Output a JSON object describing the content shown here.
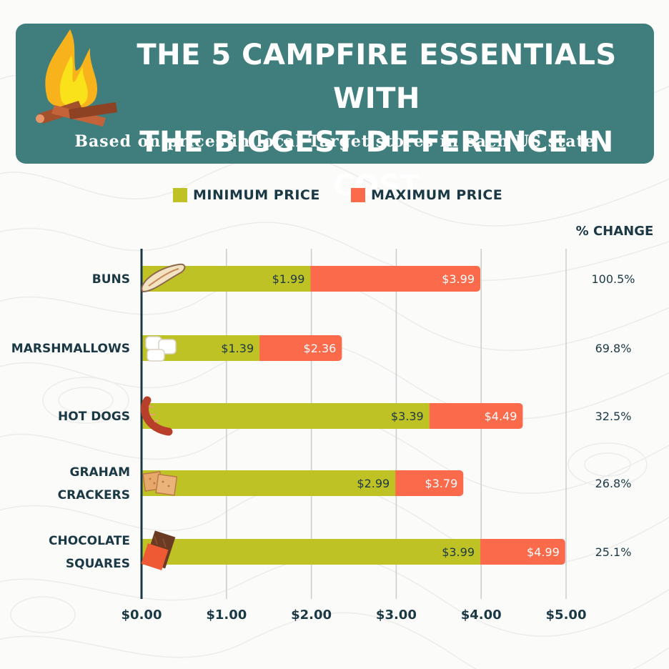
{
  "header": {
    "title_line1": "THE 5 CAMPFIRE ESSENTIALS WITH",
    "title_line2": "THE BIGGEST DIFFERENCE IN COST",
    "subtitle": "Based on prices in local Target stores in each US state"
  },
  "legend": {
    "min_label": "MINIMUM PRICE",
    "max_label": "MAXIMUM PRICE"
  },
  "pct_header": "% CHANGE",
  "colors": {
    "header_bg": "#3f7e7d",
    "min": "#bfc225",
    "max": "#fb6a4a",
    "text_dark": "#1b3845"
  },
  "icons": [
    "campfire-icon",
    "bun-icon",
    "marshmallow-icon",
    "hot-dog-icon",
    "graham-cracker-icon",
    "chocolate-icon"
  ],
  "chart_data": {
    "type": "bar",
    "orientation": "horizontal",
    "stacked_ranges": true,
    "categories": [
      [
        "BUNS"
      ],
      [
        "MARSHMALLOWS"
      ],
      [
        "HOT DOGS"
      ],
      [
        "GRAHAM",
        "CRACKERS"
      ],
      [
        "CHOCOLATE",
        "SQUARES"
      ]
    ],
    "series": [
      {
        "name": "MINIMUM PRICE",
        "values": [
          1.99,
          1.39,
          3.39,
          2.99,
          3.99
        ],
        "labels": [
          "$1.99",
          "$1.39",
          "$3.39",
          "$2.99",
          "$3.99"
        ]
      },
      {
        "name": "MAXIMUM PRICE",
        "values": [
          3.99,
          2.36,
          4.49,
          3.79,
          4.99
        ],
        "labels": [
          "$3.99",
          "$2.36",
          "$4.49",
          "$3.79",
          "$4.99"
        ]
      }
    ],
    "pct_change": [
      "100.5%",
      "69.8%",
      "32.5%",
      "26.8%",
      "25.1%"
    ],
    "x_ticks": [
      0,
      1,
      2,
      3,
      4,
      5
    ],
    "x_tick_labels": [
      "$0.00",
      "$1.00",
      "$2.00",
      "$3.00",
      "$4.00",
      "$5.00"
    ],
    "xlim": [
      0,
      5
    ],
    "grid": true
  }
}
